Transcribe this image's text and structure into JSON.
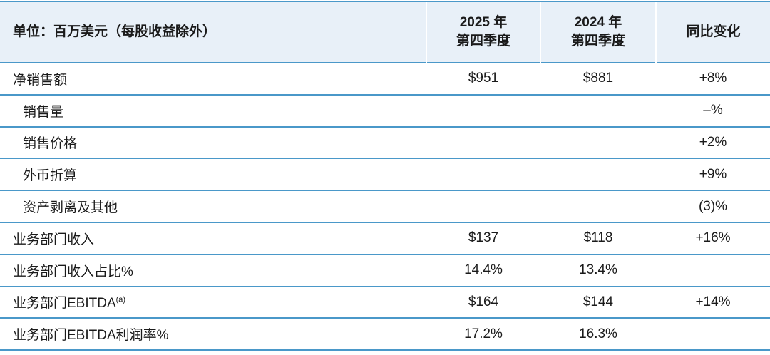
{
  "header": {
    "unit_label": "单位：百万美元（每股收益除外）",
    "col1_line1": "2025 年",
    "col1_line2": "第四季度",
    "col2_line1": "2024 年",
    "col2_line2": "第四季度",
    "col3": "同比变化"
  },
  "rows": [
    {
      "label": "净销售额",
      "sub": false,
      "v1": "$951",
      "v2": "$881",
      "chg": "+8%"
    },
    {
      "label": "销售量",
      "sub": true,
      "v1": "",
      "v2": "",
      "chg": "–%"
    },
    {
      "label": "销售价格",
      "sub": true,
      "v1": "",
      "v2": "",
      "chg": "+2%"
    },
    {
      "label": "外币折算",
      "sub": true,
      "v1": "",
      "v2": "",
      "chg": "+9%"
    },
    {
      "label": "资产剥离及其他",
      "sub": true,
      "v1": "",
      "v2": "",
      "chg": "(3)%"
    },
    {
      "label": "业务部门收入",
      "sub": false,
      "v1": "$137",
      "v2": "$118",
      "chg": "+16%"
    },
    {
      "label": "业务部门收入占比%",
      "sub": false,
      "v1": "14.4%",
      "v2": "13.4%",
      "chg": ""
    },
    {
      "label": "业务部门EBITDA",
      "sup": "(a)",
      "sub": false,
      "v1": "$164",
      "v2": "$144",
      "chg": "+14%"
    },
    {
      "label": "业务部门EBITDA利润率%",
      "sub": false,
      "v1": "17.2%",
      "v2": "16.3%",
      "chg": ""
    }
  ]
}
